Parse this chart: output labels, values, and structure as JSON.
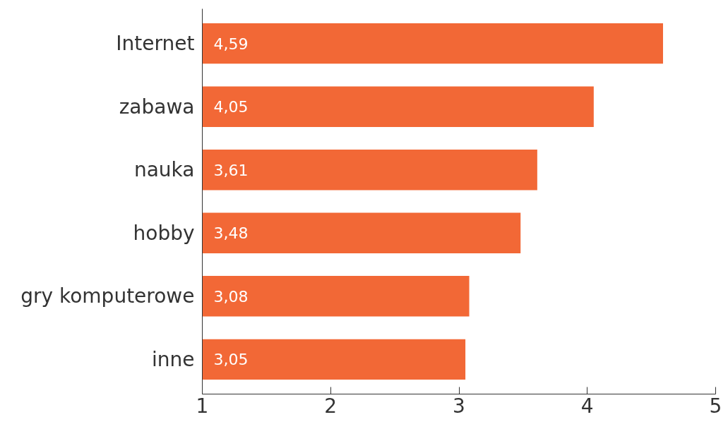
{
  "chart_data": {
    "type": "bar",
    "orientation": "horizontal",
    "categories": [
      "Internet",
      "zabawa",
      "nauka",
      "hobby",
      "gry komputerowe",
      "inne"
    ],
    "values": [
      4.59,
      4.05,
      3.61,
      3.48,
      3.08,
      3.05
    ],
    "value_labels": [
      "4,59",
      "4,05",
      "3,61",
      "3,48",
      "3,08",
      "3,05"
    ],
    "color": "#f26836",
    "xlim": [
      1,
      5
    ],
    "xticks": [
      1,
      2,
      3,
      4,
      5
    ],
    "grid": false
  }
}
